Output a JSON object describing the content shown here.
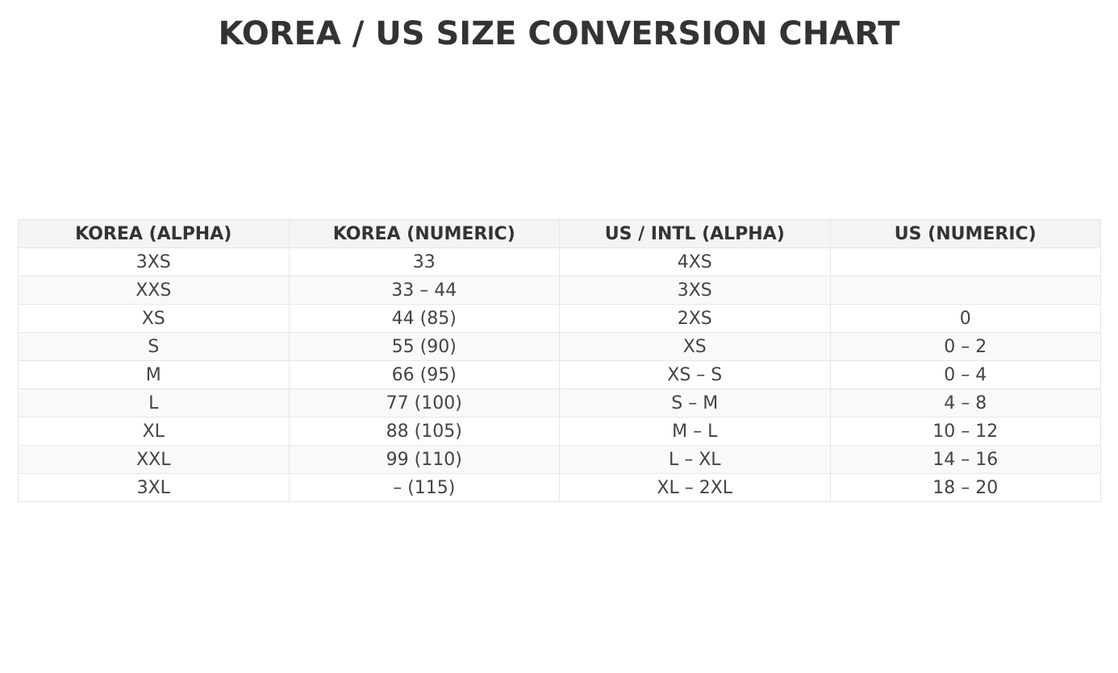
{
  "chart_data": {
    "type": "table",
    "title": "KOREA / US SIZE CONVERSION CHART",
    "columns": [
      "KOREA (ALPHA)",
      "KOREA (NUMERIC)",
      "US / INTL (ALPHA)",
      "US (NUMERIC)"
    ],
    "rows": [
      [
        "3XS",
        "33",
        "4XS",
        ""
      ],
      [
        "XXS",
        "33 – 44",
        "3XS",
        ""
      ],
      [
        "XS",
        "44 (85)",
        "2XS",
        "0"
      ],
      [
        "S",
        "55 (90)",
        "XS",
        "0 – 2"
      ],
      [
        "M",
        "66 (95)",
        "XS – S",
        "0 – 4"
      ],
      [
        "L",
        "77 (100)",
        "S – M",
        "4 – 8"
      ],
      [
        "XL",
        "88 (105)",
        "M – L",
        "10 – 12"
      ],
      [
        "XXL",
        "99 (110)",
        "L – XL",
        "14 – 16"
      ],
      [
        "3XL",
        "– (115)",
        "XL – 2XL",
        "18 – 20"
      ]
    ],
    "colors": {
      "header_bg": "#f4f4f4",
      "alt_row_bg": "#f9f9f9",
      "border": "#e6e6e6",
      "text": "#444444"
    }
  }
}
